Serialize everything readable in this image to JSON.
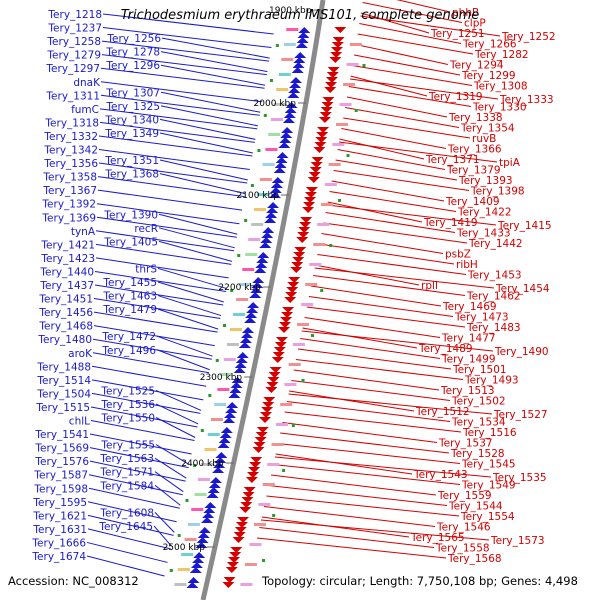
{
  "title": "Trichodesmium erythraeum IMS101, complete genome",
  "footer": {
    "accession": "Accession: NC_008312",
    "summary": "Topology: circular; Length: 7,750,108 bp; Genes: 4,498"
  },
  "colors": {
    "forward": "#1a1acc",
    "reverse": "#d40000",
    "backbone": "#8a8a8a"
  },
  "ticks": [
    "1900 kbp",
    "2000 kbp",
    "2100 kbp",
    "2200 kbp",
    "2300 kbp",
    "2400 kbp",
    "2500 kbp"
  ],
  "left_labels": [
    "Tery_1218",
    "Tery_1237",
    "Tery_1258",
    "Tery_1256",
    "Tery_1279",
    "Tery_1278",
    "Tery_1297",
    "Tery_1296",
    "dnaK",
    "Tery_1311",
    "Tery_1307",
    "fumC",
    "Tery_1325",
    "Tery_1318",
    "Tery_1340",
    "Tery_1332",
    "Tery_1349",
    "Tery_1342",
    "Tery_1356",
    "Tery_1351",
    "Tery_1358",
    "Tery_1368",
    "Tery_1367",
    "Tery_1392",
    "Tery_1369",
    "Tery_1390",
    "tynA",
    "recR",
    "Tery_1421",
    "Tery_1405",
    "Tery_1423",
    "Tery_1440",
    "thrS",
    "Tery_1437",
    "Tery_1455",
    "Tery_1451",
    "Tery_1463",
    "Tery_1456",
    "Tery_1479",
    "Tery_1468",
    "Tery_1480",
    "Tery_1472",
    "aroK",
    "Tery_1496",
    "Tery_1488",
    "Tery_1514",
    "Tery_1504",
    "Tery_1525",
    "Tery_1515",
    "Tery_1536",
    "chlL",
    "Tery_1550",
    "Tery_1541",
    "Tery_1569",
    "Tery_1555",
    "Tery_1576",
    "Tery_1563",
    "Tery_1587",
    "Tery_1571",
    "Tery_1598",
    "Tery_1584",
    "Tery_1595",
    "Tery_1621",
    "Tery_1608",
    "Tery_1631",
    "Tery_1645",
    "Tery_1666",
    "Tery_1674"
  ],
  "right_labels": [
    "phhB",
    "clpP",
    "Tery_1251",
    "Tery_1252",
    "Tery_1266",
    "Tery_1282",
    "Tery_1294",
    "Tery_1299",
    "Tery_1308",
    "Tery_1319",
    "Tery_1333",
    "Tery_1330",
    "Tery_1338",
    "Tery_1354",
    "ruvB",
    "Tery_1366",
    "Tery_1371",
    "tpiA",
    "Tery_1379",
    "Tery_1393",
    "Tery_1398",
    "Tery_1409",
    "Tery_1422",
    "Tery_1419",
    "Tery_1415",
    "Tery_1433",
    "Tery_1442",
    "psbZ",
    "ribH",
    "Tery_1453",
    "rplI",
    "Tery_1454",
    "Tery_1462",
    "Tery_1469",
    "Tery_1473",
    "Tery_1483",
    "Tery_1477",
    "Tery_1489",
    "Tery_1490",
    "Tery_1499",
    "Tery_1501",
    "Tery_1493",
    "Tery_1513",
    "Tery_1502",
    "Tery_1512",
    "Tery_1527",
    "Tery_1534",
    "Tery_1516",
    "Tery_1537",
    "Tery_1528",
    "Tery_1545",
    "Tery_1543",
    "Tery_1535",
    "Tery_1549",
    "Tery_1559",
    "Tery_1544",
    "Tery_1554",
    "Tery_1546",
    "Tery_1565",
    "Tery_1573",
    "Tery_1558",
    "Tery_1568"
  ]
}
